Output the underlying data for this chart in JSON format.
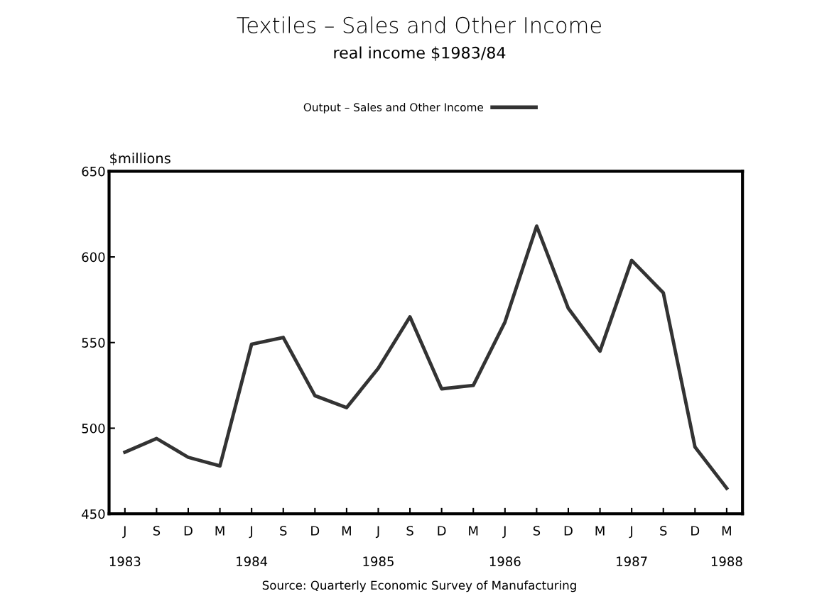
{
  "chart_data": {
    "type": "line",
    "title": "Textiles – Sales and Other Income",
    "subtitle": "real income $1983/84",
    "ylabel": "$millions",
    "categories": [
      "J\n\n1983",
      "S",
      "D",
      "M",
      "J\n\n1984",
      "S",
      "D",
      "M",
      "J\n\n1985",
      "S",
      "D",
      "M",
      "J\n\n1986",
      "S",
      "D",
      "M",
      "J\n\n1987",
      "S",
      "D",
      "M\n\n1988"
    ],
    "series": [
      {
        "name": "Output – Sales and Other Income",
        "color": "#333333",
        "values": [
          486,
          494,
          483,
          478,
          549,
          553,
          519,
          512,
          535,
          565,
          523,
          525,
          562,
          618,
          570,
          545,
          598,
          579,
          489,
          465
        ]
      }
    ],
    "ylim": [
      450,
      650
    ],
    "yticks": [
      450,
      500,
      550,
      600,
      650
    ],
    "grid": false,
    "legend": "top",
    "marker": "none",
    "line_style": "solid",
    "annotations": [
      "Source: Quarterly Economic Survey of Manufacturing"
    ]
  }
}
